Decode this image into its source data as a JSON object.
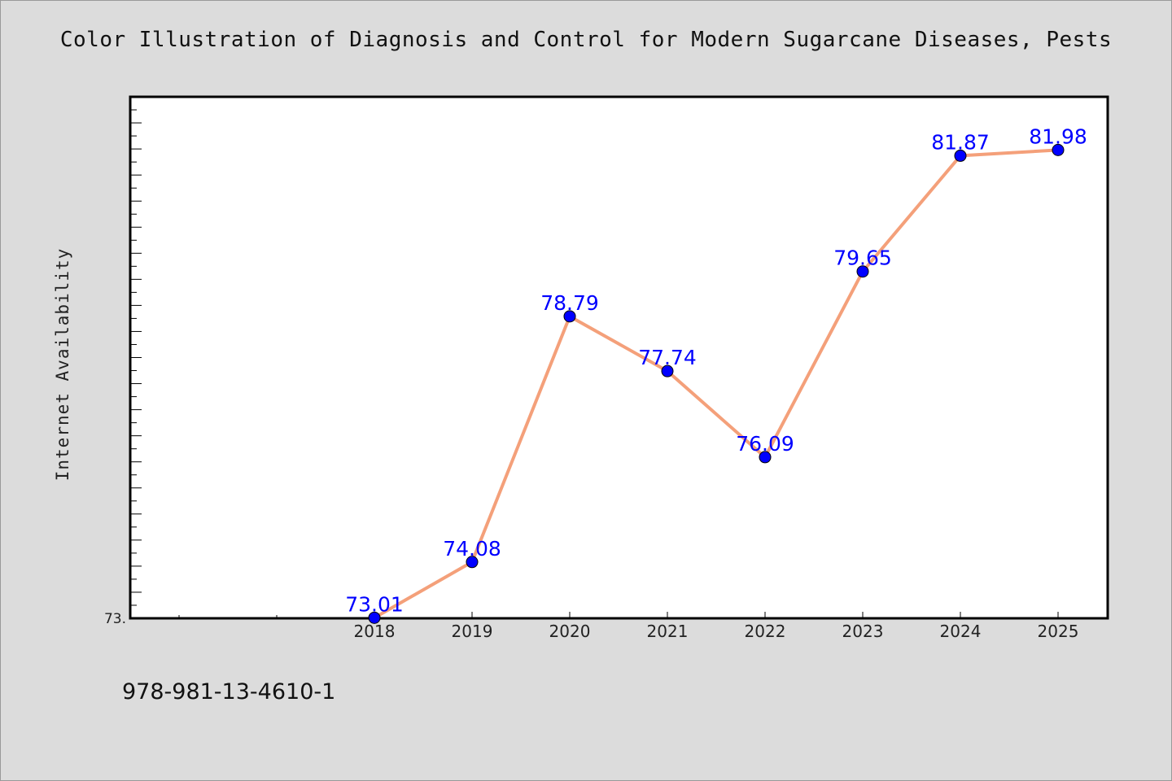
{
  "page": {
    "footer_text": "978-981-13-4610-1"
  },
  "chart_data": {
    "type": "line",
    "title": "Color Illustration of Diagnosis and Control for Modern Sugarcane Diseases, Pests",
    "xlabel": "",
    "ylabel": "Internet Availability",
    "categories": [
      "2018",
      "2019",
      "2020",
      "2021",
      "2022",
      "2023",
      "2024",
      "2025"
    ],
    "series": [
      {
        "values": [
          73.01,
          74.08,
          78.79,
          77.74,
          76.09,
          79.65,
          81.87,
          81.98
        ]
      }
    ],
    "data_labels": [
      "73.01",
      "74.08",
      "78.79",
      "77.74",
      "76.09",
      "79.65",
      "81.87",
      "81.98"
    ],
    "ylim": [
      73.0,
      83.0
    ],
    "y_tick_label_shown": "73.",
    "grid": false,
    "legend": "none",
    "colors": {
      "line": "#f4a07a",
      "marker": "#0000ff",
      "data_label": "#0000ff",
      "plot_background": "#ffffff",
      "figure_background": "#dcdcdc"
    }
  }
}
